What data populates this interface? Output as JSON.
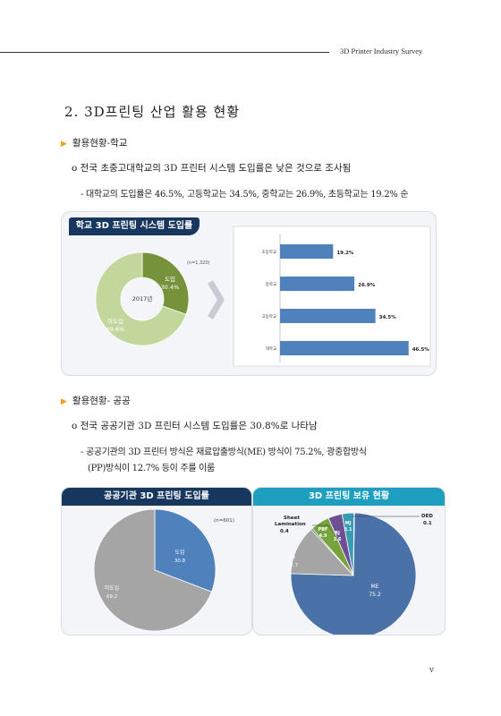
{
  "header": {
    "text": "3D Printer Industry Survey"
  },
  "section": {
    "title": "2. 3D프린팅 산업 활용 현황"
  },
  "school": {
    "heading": "활용현황-학교",
    "point": "o 전국 초중고대학교의 3D 프린터 시스템 도입률은 낮은 것으로 조사됨",
    "detail": "- 대학교의 도입률은 46.5%, 고등학교는 34.5%, 중학교는 26.9%, 초등학교는 19.2% 순",
    "panel_title": "학교 3D 프린팅 시스템 도입률",
    "donut": {
      "n_label": "(n=1,320)",
      "center_label": "2017년",
      "slices": [
        {
          "name": "도입",
          "value_label": "30.4%",
          "value": 30.4,
          "color": "#76933c"
        },
        {
          "name": "미도입",
          "value_label": "69.6%",
          "value": 69.6,
          "color": "#c3d69b"
        }
      ]
    }
  },
  "chart_data": [
    {
      "type": "pie",
      "title": "",
      "categories": [
        "도입",
        "미도입"
      ],
      "values": [
        30.4,
        69.6
      ]
    },
    {
      "type": "bar",
      "orientation": "horizontal",
      "categories": [
        "초등학교",
        "중학교",
        "고등학교",
        "대학교"
      ],
      "values": [
        19.2,
        26.9,
        34.5,
        46.5
      ],
      "value_labels": [
        "19.2%",
        "26.9%",
        "34.5%",
        "46.5%"
      ],
      "xlim": [
        0,
        55
      ],
      "color": "#4f81bd"
    },
    {
      "type": "pie",
      "categories": [
        "도입",
        "미도입"
      ],
      "values": [
        30.8,
        69.2
      ]
    },
    {
      "type": "pie",
      "categories": [
        "ME",
        "PP",
        "PBF",
        "BJ",
        "MJ",
        "DED",
        "Sheet Lamination"
      ],
      "values": [
        75.2,
        12.7,
        4.9,
        3.6,
        3.1,
        0.1,
        0.4
      ]
    }
  ],
  "public": {
    "heading": "활용현황- 공공",
    "point": "o 전국 공공기관 3D 프린터 시스템 도입률은 30.8%로 나타남",
    "detail_line1": "- 공공기관의 3D 프린터 방식은 재료압출방식(ME) 방식이 75.2%, 광중합방식",
    "detail_line2": "(PP)방식이 12.7% 등이 주를 이룸",
    "panel_left_title": "공공기관 3D 프린팅 도입률",
    "panel_right_title": "3D 프린팅 보유 현황",
    "pie_left": {
      "n_label": "(n=601)",
      "slices": [
        {
          "name": "도입",
          "value_label": "30.8",
          "value": 30.8,
          "color": "#4f81bd"
        },
        {
          "name": "미도입",
          "value_label": "69.2",
          "value": 69.2,
          "color": "#a5a5a5"
        }
      ]
    },
    "pie_right": {
      "slices": [
        {
          "name": "ME",
          "value_label": "75.2",
          "value": 75.2,
          "color": "#4a72a8"
        },
        {
          "name": "PP",
          "value_label": "12.7",
          "value": 12.7,
          "color": "#a5a5a5"
        },
        {
          "name": "PBF",
          "value_label": "4.9",
          "value": 4.9,
          "color": "#77a33d"
        },
        {
          "name": "BJ",
          "value_label": "3.6",
          "value": 3.6,
          "color": "#6f4f94"
        },
        {
          "name": "MJ",
          "value_label": "3.1",
          "value": 3.1,
          "color": "#3a9bb5"
        },
        {
          "name": "DED",
          "value_label": "0.1",
          "value": 0.1,
          "color": "#e07b2a"
        },
        {
          "name": "Sheet Lamination",
          "value_label": "0.4",
          "value": 0.4,
          "color": "#444444"
        }
      ],
      "callout_sheet_name1": "Sheet",
      "callout_sheet_name2": "Lamination"
    }
  },
  "colors": {
    "title_blue": "#17375e",
    "title_teal": "#1f9fc0",
    "bullet_orange": "#f0a020"
  },
  "page_number": "v"
}
